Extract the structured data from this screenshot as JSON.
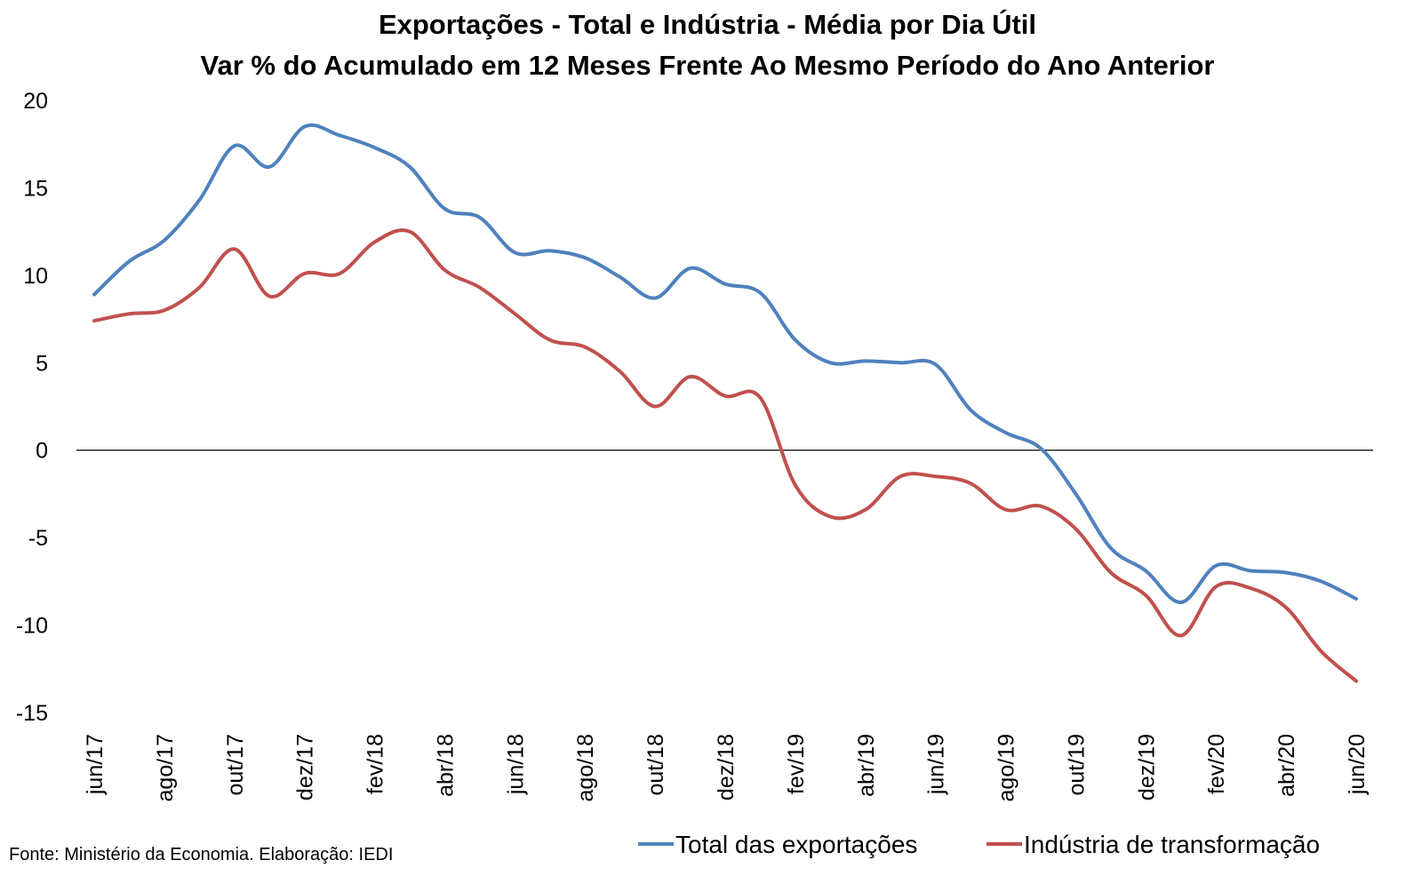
{
  "chart_data": {
    "type": "line",
    "title": "Exportações - Total e Indústria - Média por Dia Útil",
    "subtitle": "Var % do Acumulado em 12 Meses Frente Ao Mesmo Período do Ano Anterior",
    "xlabel": "",
    "ylabel": "",
    "ylim": [
      -15,
      20
    ],
    "yticks": [
      20,
      15,
      10,
      5,
      0,
      -5,
      -10,
      -15
    ],
    "x": [
      "jun/17",
      "jul/17",
      "ago/17",
      "set/17",
      "out/17",
      "nov/17",
      "dez/17",
      "jan/18",
      "fev/18",
      "mar/18",
      "abr/18",
      "mai/18",
      "jun/18",
      "jul/18",
      "ago/18",
      "set/18",
      "out/18",
      "nov/18",
      "dez/18",
      "jan/19",
      "fev/19",
      "mar/19",
      "abr/19",
      "mai/19",
      "jun/19",
      "jul/19",
      "ago/19",
      "set/19",
      "out/19",
      "nov/19",
      "dez/19",
      "jan/20",
      "fev/20",
      "mar/20",
      "abr/20",
      "mai/20",
      "jun/20"
    ],
    "xtick_labels": [
      "jun/17",
      "ago/17",
      "out/17",
      "dez/17",
      "fev/18",
      "abr/18",
      "jun/18",
      "ago/18",
      "out/18",
      "dez/18",
      "fev/19",
      "abr/19",
      "jun/19",
      "ago/19",
      "out/19",
      "dez/19",
      "fev/20",
      "abr/20",
      "jun/20"
    ],
    "series": [
      {
        "name": "Total das exportações",
        "color": "#4f81bd",
        "values": [
          8.9,
          10.8,
          12.0,
          14.3,
          17.4,
          16.2,
          18.5,
          18.0,
          17.3,
          16.2,
          13.8,
          13.3,
          11.3,
          11.4,
          11.0,
          9.9,
          8.7,
          10.4,
          9.5,
          9.0,
          6.3,
          5.0,
          5.1,
          5.0,
          4.9,
          2.3,
          1.0,
          0.1,
          -2.5,
          -5.6,
          -6.9,
          -8.7,
          -6.6,
          -6.9,
          -7.0,
          -7.5,
          -8.5
        ],
        "label": "Total das exportações"
      },
      {
        "name": "Indústria de transformação",
        "color": "#c0504d",
        "values": [
          7.4,
          7.8,
          8.0,
          9.3,
          11.5,
          8.8,
          10.1,
          10.1,
          11.9,
          12.5,
          10.3,
          9.3,
          7.8,
          6.3,
          5.9,
          4.5,
          2.5,
          4.2,
          3.1,
          3.0,
          -2.0,
          -3.8,
          -3.4,
          -1.5,
          -1.5,
          -1.9,
          -3.4,
          -3.2,
          -4.5,
          -7.0,
          -8.3,
          -10.6,
          -7.8,
          -7.9,
          -9.0,
          -11.5,
          -13.2
        ],
        "label": "Indústria de transformação"
      }
    ],
    "grid": false,
    "legend_position": "bottom-right",
    "source_note": "Fonte: Ministério da Economia. Elaboração: IEDI"
  }
}
